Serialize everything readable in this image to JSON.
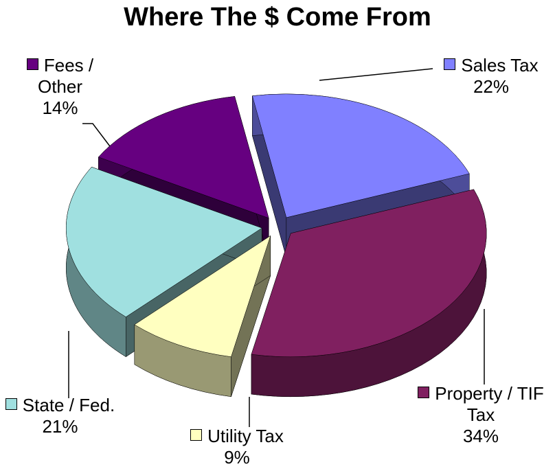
{
  "chart_data": {
    "type": "pie",
    "title": "Where The $ Come From",
    "categories": [
      "Sales Tax",
      "Property / TIF Tax",
      "Utility Tax",
      "State / Fed.",
      "Fees / Other"
    ],
    "values": [
      22,
      34,
      9,
      21,
      14
    ],
    "value_labels": [
      "22%",
      "34%",
      "9%",
      "21%",
      "14%"
    ],
    "colors": [
      "#8080ff",
      "#802060",
      "#ffffc0",
      "#a0e0e0",
      "#660080"
    ]
  }
}
